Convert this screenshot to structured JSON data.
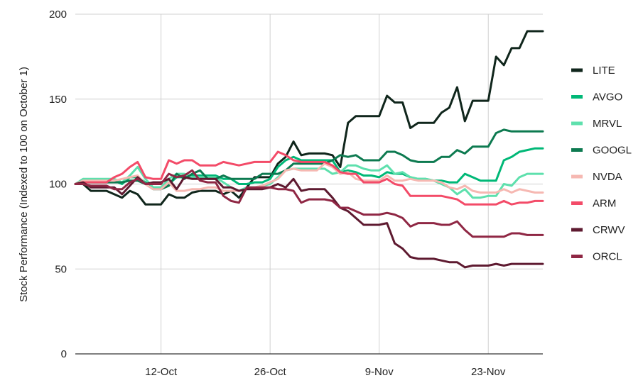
{
  "chart_data": {
    "type": "line",
    "title": "",
    "xlabel": "",
    "ylabel": "Stock Performance (Indexed to 100 on October 1)",
    "ylim": [
      0,
      200
    ],
    "yticks": [
      0,
      50,
      100,
      150,
      200
    ],
    "x_tick_labels": [
      "12-Oct",
      "26-Oct",
      "9-Nov",
      "23-Nov"
    ],
    "x_tick_positions": [
      11,
      25,
      39,
      53
    ],
    "x_range": [
      0,
      60
    ],
    "grid": "on",
    "legend_position": "right",
    "series": [
      {
        "name": "LITE",
        "color": "#10261c",
        "values": [
          100,
          100,
          96,
          96,
          96,
          94,
          92,
          96,
          94,
          88,
          88,
          88,
          94,
          92,
          92,
          95,
          96,
          96,
          96,
          94,
          96,
          92,
          98,
          104,
          104,
          104,
          112,
          116,
          125,
          117,
          118,
          118,
          118,
          117,
          110,
          136,
          140,
          140,
          140,
          140,
          152,
          148,
          148,
          133,
          136,
          136,
          136,
          142,
          145,
          157,
          137,
          149,
          149,
          149,
          175,
          170,
          180,
          180,
          190,
          190,
          190
        ]
      },
      {
        "name": "AVGO",
        "color": "#00b877",
        "values": [
          100,
          101,
          101,
          101,
          101,
          102,
          100,
          104,
          104,
          101,
          98,
          98,
          100,
          104,
          104,
          105,
          105,
          105,
          105,
          103,
          103,
          100,
          100,
          101,
          101,
          103,
          110,
          114,
          116,
          114,
          114,
          114,
          114,
          114,
          107,
          108,
          107,
          105,
          105,
          104,
          107,
          106,
          106,
          104,
          103,
          103,
          102,
          102,
          101,
          101,
          106,
          104,
          102,
          102,
          102,
          114,
          116,
          119,
          120,
          121,
          121
        ]
      },
      {
        "name": "MRVL",
        "color": "#5ee0ad",
        "values": [
          100,
          103,
          103,
          103,
          103,
          103,
          101,
          105,
          110,
          103,
          98,
          98,
          103,
          106,
          106,
          104,
          104,
          104,
          104,
          101,
          98,
          96,
          98,
          98,
          99,
          100,
          104,
          108,
          109,
          109,
          109,
          109,
          109,
          106,
          107,
          111,
          111,
          109,
          108,
          108,
          111,
          106,
          107,
          104,
          103,
          103,
          102,
          100,
          98,
          94,
          97,
          92,
          92,
          93,
          93,
          100,
          99,
          104,
          106,
          106,
          106
        ]
      },
      {
        "name": "GOOGL",
        "color": "#0d7a50",
        "values": [
          100,
          101,
          101,
          101,
          101,
          101,
          101,
          102,
          102,
          100,
          97,
          97,
          99,
          106,
          103,
          106,
          108,
          103,
          103,
          105,
          103,
          103,
          103,
          103,
          106,
          106,
          106,
          108,
          112,
          112,
          112,
          112,
          112,
          114,
          117,
          116,
          117,
          114,
          114,
          114,
          119,
          119,
          117,
          114,
          113,
          113,
          113,
          116,
          116,
          120,
          118,
          122,
          122,
          122,
          130,
          132,
          131,
          131,
          131,
          131,
          131
        ]
      },
      {
        "name": "NVDA",
        "color": "#f6b8b2",
        "values": [
          100,
          102,
          102,
          102,
          102,
          102,
          103,
          104,
          105,
          100,
          97,
          97,
          101,
          96,
          96,
          97,
          97,
          98,
          98,
          96,
          96,
          96,
          97,
          98,
          99,
          101,
          103,
          108,
          109,
          108,
          108,
          108,
          112,
          110,
          106,
          107,
          103,
          102,
          102,
          102,
          105,
          102,
          102,
          103,
          102,
          102,
          102,
          101,
          98,
          97,
          99,
          96,
          95,
          95,
          95,
          97,
          95,
          97,
          96,
          95,
          95
        ]
      },
      {
        "name": "ARM",
        "color": "#f34b68",
        "values": [
          100,
          101,
          101,
          101,
          101,
          104,
          106,
          110,
          113,
          104,
          103,
          103,
          114,
          112,
          114,
          114,
          111,
          111,
          111,
          113,
          112,
          111,
          112,
          113,
          113,
          113,
          119,
          117,
          114,
          113,
          113,
          113,
          113,
          111,
          107,
          106,
          106,
          101,
          101,
          101,
          103,
          100,
          99,
          93,
          93,
          93,
          93,
          93,
          92,
          91,
          88,
          88,
          88,
          88,
          88,
          90,
          88,
          89,
          89,
          90,
          90
        ]
      },
      {
        "name": "CRWV",
        "color": "#5e1a30",
        "values": [
          100,
          101,
          98,
          98,
          98,
          98,
          94,
          99,
          104,
          100,
          101,
          101,
          103,
          97,
          104,
          103,
          103,
          103,
          103,
          98,
          98,
          96,
          97,
          97,
          97,
          98,
          100,
          98,
          103,
          96,
          97,
          97,
          97,
          92,
          86,
          84,
          80,
          76,
          76,
          76,
          77,
          65,
          62,
          57,
          56,
          56,
          56,
          55,
          54,
          54,
          51,
          52,
          52,
          52,
          53,
          52,
          53,
          53,
          53,
          53,
          53
        ]
      },
      {
        "name": "ORCL",
        "color": "#8f2744",
        "values": [
          100,
          100,
          99,
          99,
          99,
          97,
          97,
          101,
          103,
          100,
          100,
          100,
          106,
          104,
          105,
          108,
          102,
          101,
          101,
          93,
          90,
          89,
          98,
          98,
          98,
          98,
          97,
          97,
          96,
          89,
          91,
          91,
          91,
          90,
          86,
          86,
          84,
          82,
          82,
          82,
          83,
          82,
          80,
          75,
          77,
          77,
          77,
          76,
          76,
          78,
          73,
          69,
          69,
          69,
          69,
          69,
          71,
          71,
          70,
          70,
          70
        ]
      }
    ]
  }
}
